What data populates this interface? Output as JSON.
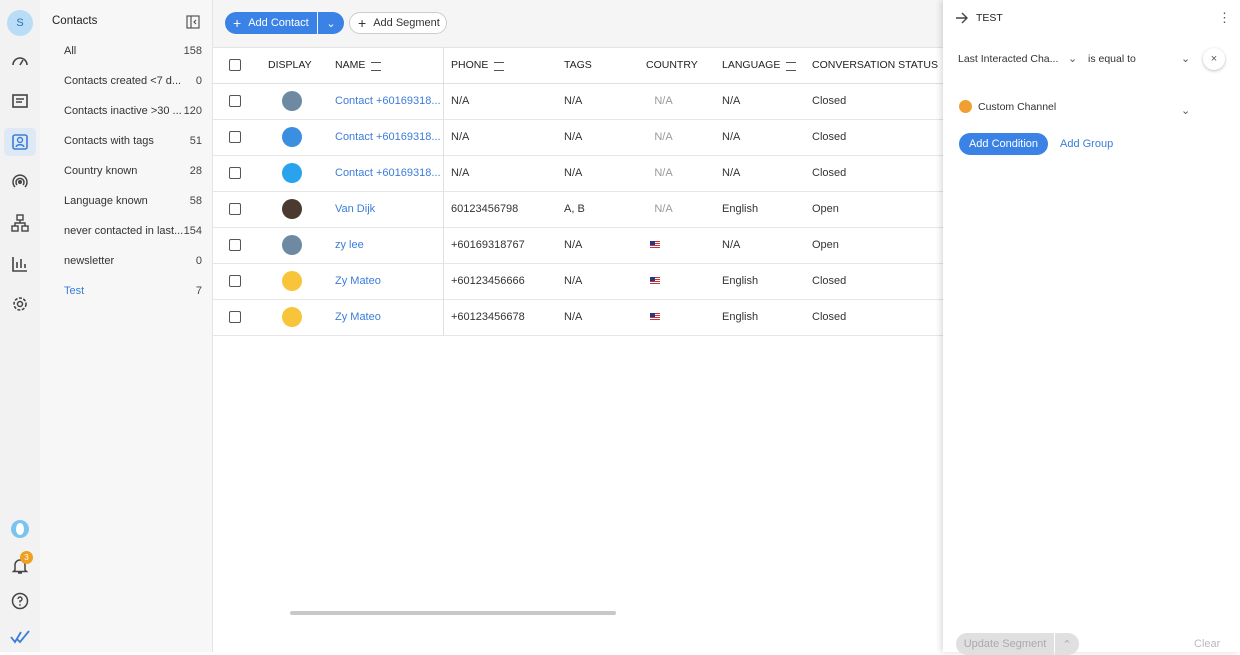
{
  "rail": {
    "avatar": "S",
    "badge": "3"
  },
  "segments": {
    "title": "Contacts",
    "items": [
      {
        "label": "All",
        "count": 158
      },
      {
        "label": "Contacts created <7 d...",
        "count": 0
      },
      {
        "label": "Contacts inactive >30 ...",
        "count": 120
      },
      {
        "label": "Contacts with tags",
        "count": 51
      },
      {
        "label": "Country known",
        "count": 28
      },
      {
        "label": "Language known",
        "count": 58
      },
      {
        "label": "never contacted in last...",
        "count": 154
      },
      {
        "label": "newsletter",
        "count": 0
      },
      {
        "label": "Test",
        "count": 7
      }
    ]
  },
  "toolbar": {
    "add_contact": "Add Contact",
    "add_segment": "Add Segment"
  },
  "table": {
    "columns": [
      "DISPLAY",
      "NAME",
      "PHONE",
      "TAGS",
      "COUNTRY",
      "LANGUAGE",
      "CONVERSATION STATUS"
    ],
    "rows": [
      {
        "name": "Contact +60169318...",
        "phone": "N/A",
        "tags": "N/A",
        "country": "N/A",
        "language": "N/A",
        "status": "Closed"
      },
      {
        "name": "Contact +60169318...",
        "phone": "N/A",
        "tags": "N/A",
        "country": "N/A",
        "language": "N/A",
        "status": "Closed"
      },
      {
        "name": "Contact +60169318...",
        "phone": "N/A",
        "tags": "N/A",
        "country": "N/A",
        "language": "N/A",
        "status": "Closed"
      },
      {
        "name": "Van Dijk",
        "phone": "60123456798",
        "tags": "A, B",
        "country": "N/A",
        "language": "English",
        "status": "Open"
      },
      {
        "name": "zy lee",
        "phone": "+60169318767",
        "tags": "N/A",
        "country": null,
        "language": "N/A",
        "status": "Open"
      },
      {
        "name": "Zy Mateo",
        "phone": "+60123456666",
        "tags": "N/A",
        "country": null,
        "language": "English",
        "status": "Closed"
      },
      {
        "name": "Zy Mateo",
        "phone": "+60123456678",
        "tags": "N/A",
        "country": null,
        "language": "English",
        "status": "Closed"
      }
    ]
  },
  "panel": {
    "title": "TEST",
    "field": "Last Interacted Cha...",
    "operator": "is equal to",
    "value": "Custom Channel",
    "add_condition": "Add Condition",
    "add_group": "Add Group",
    "update": "Update Segment",
    "clear": "Clear"
  }
}
